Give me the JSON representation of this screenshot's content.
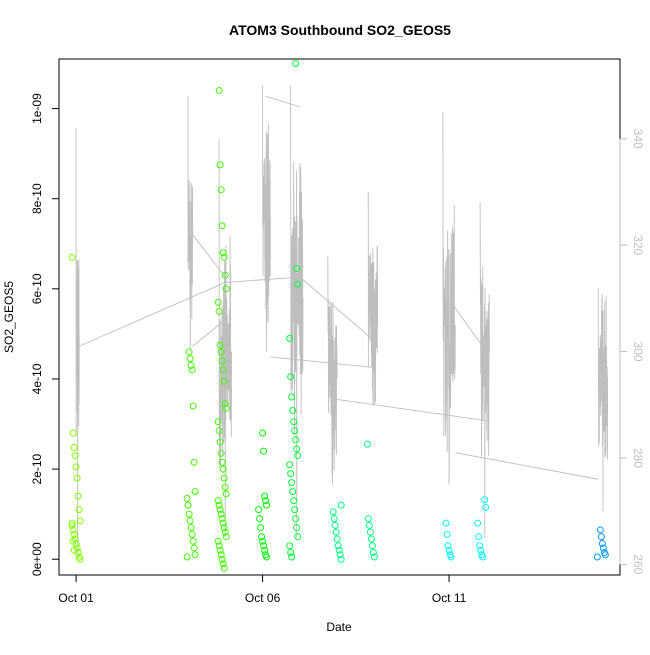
{
  "chart_data": {
    "type": "scatter",
    "title": "ATOM3 Southbound SO2_GEOS5",
    "xlabel": "Date",
    "ylabel": "SO2_GEOS5",
    "xlim": [
      "2017-09-30T13:00",
      "2017-10-15T14:00"
    ],
    "ylim": [
      -3.5e-11,
      1.11e-09
    ],
    "x_ticks": [
      {
        "label": "Oct 01",
        "value": "2017-10-01T00:00"
      },
      {
        "label": "Oct 06",
        "value": "2017-10-06T00:00"
      },
      {
        "label": "Oct 11",
        "value": "2017-10-11T00:00"
      }
    ],
    "y_ticks": [
      {
        "label": "0e+00",
        "value": 0
      },
      {
        "label": "2e-10",
        "value": 2e-10
      },
      {
        "label": "4e-10",
        "value": 4e-10
      },
      {
        "label": "6e-10",
        "value": 6e-10
      },
      {
        "label": "8e-10",
        "value": 8e-10
      },
      {
        "label": "1e-09",
        "value": 1e-09
      }
    ],
    "y2_ticks": [
      {
        "label": "260",
        "value": 260
      },
      {
        "label": "280",
        "value": 280
      },
      {
        "label": "300",
        "value": 300
      },
      {
        "label": "320",
        "value": 320
      },
      {
        "label": "340",
        "value": 340
      }
    ],
    "y2lim": [
      258,
      355
    ],
    "grid": false,
    "colors": {
      "axis": "#000000",
      "secondary_axis": "#bebebe",
      "overlay_line": "#bebebe"
    },
    "series": [
      {
        "color": "#7fff00",
        "points": [
          [
            "2017-10-01T00:00",
            6.7e-10
          ],
          [
            "2017-10-01T00:00",
            2.8e-10
          ],
          [
            "2017-10-01T00:00",
            2.48e-10
          ],
          [
            "2017-10-01T00:00",
            2.3e-10
          ],
          [
            "2017-10-01T00:00",
            2.05e-10
          ],
          [
            "2017-10-01T00:00",
            1.8e-10
          ],
          [
            "2017-10-01T00:00",
            1.4e-10
          ],
          [
            "2017-10-01T00:00",
            1.1e-10
          ],
          [
            "2017-10-01T00:00",
            8.5e-11
          ],
          [
            "2017-10-01T00:00",
            7.5e-11
          ],
          [
            "2017-10-01T00:00",
            6.5e-11
          ],
          [
            "2017-10-01T00:00",
            5.5e-11
          ],
          [
            "2017-10-01T00:00",
            4.5e-11
          ],
          [
            "2017-10-01T00:00",
            3.5e-11
          ],
          [
            "2017-10-01T00:00",
            2.5e-11
          ],
          [
            "2017-10-01T00:00",
            1.5e-11
          ],
          [
            "2017-10-01T00:00",
            5e-12
          ],
          [
            "2017-10-01T00:00",
            0
          ],
          [
            "2017-10-01T00:00",
            8e-11
          ],
          [
            "2017-10-01T00:00",
            4e-11
          ],
          [
            "2017-10-01T00:00",
            2e-11
          ]
        ]
      },
      {
        "color": "#3fff00",
        "points": [
          [
            "2017-10-04T02:00",
            4.6e-10
          ],
          [
            "2017-10-04T02:00",
            4.45e-10
          ],
          [
            "2017-10-04T02:00",
            4.3e-10
          ],
          [
            "2017-10-04T02:00",
            4.2e-10
          ],
          [
            "2017-10-04T02:00",
            3.4e-10
          ],
          [
            "2017-10-04T02:00",
            2.15e-10
          ],
          [
            "2017-10-04T02:00",
            1.5e-10
          ],
          [
            "2017-10-04T02:00",
            1.35e-10
          ],
          [
            "2017-10-04T02:00",
            1.2e-10
          ],
          [
            "2017-10-04T02:00",
            1e-10
          ],
          [
            "2017-10-04T02:00",
            8.5e-11
          ],
          [
            "2017-10-04T02:00",
            7e-11
          ],
          [
            "2017-10-04T02:00",
            5.5e-11
          ],
          [
            "2017-10-04T02:00",
            4e-11
          ],
          [
            "2017-10-04T02:00",
            2.5e-11
          ],
          [
            "2017-10-04T02:00",
            1e-11
          ],
          [
            "2017-10-04T02:00",
            5e-12
          ],
          [
            "2017-10-04T22:00",
            1.04e-09
          ],
          [
            "2017-10-04T22:00",
            8.75e-10
          ],
          [
            "2017-10-04T22:00",
            8.2e-10
          ],
          [
            "2017-10-04T22:00",
            7.4e-10
          ],
          [
            "2017-10-04T22:00",
            6.8e-10
          ],
          [
            "2017-10-04T22:00",
            6.7e-10
          ],
          [
            "2017-10-04T22:00",
            6.3e-10
          ],
          [
            "2017-10-04T22:00",
            6e-10
          ],
          [
            "2017-10-04T22:00",
            5.7e-10
          ],
          [
            "2017-10-04T22:00",
            5.5e-10
          ],
          [
            "2017-10-04T22:00",
            4.75e-10
          ],
          [
            "2017-10-04T22:00",
            4.6e-10
          ],
          [
            "2017-10-04T22:00",
            4.4e-10
          ],
          [
            "2017-10-04T22:00",
            4.2e-10
          ],
          [
            "2017-10-04T22:00",
            3.95e-10
          ],
          [
            "2017-10-04T22:00",
            3.45e-10
          ],
          [
            "2017-10-04T22:00",
            3.35e-10
          ],
          [
            "2017-10-04T22:00",
            3.05e-10
          ],
          [
            "2017-10-04T22:00",
            2.85e-10
          ],
          [
            "2017-10-04T22:00",
            2.6e-10
          ],
          [
            "2017-10-04T22:00",
            2.35e-10
          ],
          [
            "2017-10-04T22:00",
            2.15e-10
          ],
          [
            "2017-10-04T22:00",
            2e-10
          ],
          [
            "2017-10-04T22:00",
            1.8e-10
          ],
          [
            "2017-10-04T22:00",
            1.6e-10
          ],
          [
            "2017-10-04T22:00",
            1.45e-10
          ],
          [
            "2017-10-04T22:00",
            1.3e-10
          ],
          [
            "2017-10-04T22:00",
            1.2e-10
          ],
          [
            "2017-10-04T22:00",
            1.1e-10
          ],
          [
            "2017-10-04T22:00",
            1e-10
          ],
          [
            "2017-10-04T22:00",
            9e-11
          ],
          [
            "2017-10-04T22:00",
            8e-11
          ],
          [
            "2017-10-04T22:00",
            7e-11
          ],
          [
            "2017-10-04T22:00",
            6e-11
          ],
          [
            "2017-10-04T22:00",
            5e-11
          ],
          [
            "2017-10-04T22:00",
            4e-11
          ],
          [
            "2017-10-04T22:00",
            3e-11
          ],
          [
            "2017-10-04T22:00",
            2e-11
          ],
          [
            "2017-10-04T22:00",
            1e-11
          ],
          [
            "2017-10-04T22:00",
            0
          ],
          [
            "2017-10-04T22:00",
            -1e-11
          ],
          [
            "2017-10-04T22:00",
            -2e-11
          ]
        ]
      },
      {
        "color": "#00ff00",
        "points": [
          [
            "2017-10-06T00:00",
            2.8e-10
          ],
          [
            "2017-10-06T00:00",
            2.4e-10
          ],
          [
            "2017-10-06T00:00",
            1.4e-10
          ],
          [
            "2017-10-06T00:00",
            1.3e-10
          ],
          [
            "2017-10-06T00:00",
            1.2e-10
          ],
          [
            "2017-10-06T00:00",
            1.1e-10
          ],
          [
            "2017-10-06T00:00",
            9e-11
          ],
          [
            "2017-10-06T00:00",
            7e-11
          ],
          [
            "2017-10-06T00:00",
            5e-11
          ],
          [
            "2017-10-06T00:00",
            4e-11
          ],
          [
            "2017-10-06T00:00",
            3e-11
          ],
          [
            "2017-10-06T00:00",
            2e-11
          ],
          [
            "2017-10-06T00:00",
            1e-11
          ],
          [
            "2017-10-06T00:00",
            5e-12
          ]
        ]
      },
      {
        "color": "#00ff33",
        "points": [
          [
            "2017-10-06T20:00",
            1.1e-09
          ],
          [
            "2017-10-06T20:00",
            6.45e-10
          ],
          [
            "2017-10-06T20:00",
            6.1e-10
          ],
          [
            "2017-10-06T20:00",
            4.9e-10
          ],
          [
            "2017-10-06T20:00",
            4.05e-10
          ],
          [
            "2017-10-06T20:00",
            3.6e-10
          ],
          [
            "2017-10-06T20:00",
            3.3e-10
          ],
          [
            "2017-10-06T20:00",
            3.05e-10
          ],
          [
            "2017-10-06T20:00",
            2.85e-10
          ],
          [
            "2017-10-06T20:00",
            2.65e-10
          ],
          [
            "2017-10-06T20:00",
            2.45e-10
          ],
          [
            "2017-10-06T20:00",
            2.3e-10
          ],
          [
            "2017-10-06T20:00",
            2.1e-10
          ],
          [
            "2017-10-06T20:00",
            1.9e-10
          ],
          [
            "2017-10-06T20:00",
            1.7e-10
          ],
          [
            "2017-10-06T20:00",
            1.5e-10
          ],
          [
            "2017-10-06T20:00",
            1.3e-10
          ],
          [
            "2017-10-06T20:00",
            1.1e-10
          ],
          [
            "2017-10-06T20:00",
            9e-11
          ],
          [
            "2017-10-06T20:00",
            7e-11
          ],
          [
            "2017-10-06T20:00",
            5e-11
          ],
          [
            "2017-10-06T20:00",
            3e-11
          ],
          [
            "2017-10-06T20:00",
            1.5e-11
          ],
          [
            "2017-10-06T20:00",
            5e-12
          ]
        ]
      },
      {
        "color": "#00ff80",
        "points": [
          [
            "2017-10-08T00:00",
            1.2e-10
          ],
          [
            "2017-10-08T00:00",
            1.05e-10
          ],
          [
            "2017-10-08T00:00",
            9e-11
          ],
          [
            "2017-10-08T00:00",
            7.5e-11
          ],
          [
            "2017-10-08T00:00",
            6e-11
          ],
          [
            "2017-10-08T00:00",
            4.5e-11
          ],
          [
            "2017-10-08T00:00",
            3e-11
          ],
          [
            "2017-10-08T00:00",
            2e-11
          ],
          [
            "2017-10-08T00:00",
            1e-11
          ],
          [
            "2017-10-08T00:00",
            0
          ],
          [
            "2017-10-08T22:00",
            2.55e-10
          ],
          [
            "2017-10-08T22:00",
            9e-11
          ],
          [
            "2017-10-08T22:00",
            7.5e-11
          ],
          [
            "2017-10-08T22:00",
            6e-11
          ],
          [
            "2017-10-08T22:00",
            4.5e-11
          ],
          [
            "2017-10-08T22:00",
            3e-11
          ],
          [
            "2017-10-08T22:00",
            1.5e-11
          ],
          [
            "2017-10-08T22:00",
            5e-12
          ]
        ]
      },
      {
        "color": "#00ffff",
        "points": [
          [
            "2017-10-11T00:00",
            8e-11
          ],
          [
            "2017-10-11T00:00",
            5.5e-11
          ],
          [
            "2017-10-11T00:00",
            3e-11
          ],
          [
            "2017-10-11T00:00",
            2e-11
          ],
          [
            "2017-10-11T00:00",
            1e-11
          ],
          [
            "2017-10-11T00:00",
            5e-12
          ],
          [
            "2017-10-11T21:00",
            1.32e-10
          ],
          [
            "2017-10-11T21:00",
            1.15e-10
          ],
          [
            "2017-10-11T21:00",
            8e-11
          ],
          [
            "2017-10-11T21:00",
            5e-11
          ],
          [
            "2017-10-11T21:00",
            3e-11
          ],
          [
            "2017-10-11T21:00",
            2e-11
          ],
          [
            "2017-10-11T21:00",
            1e-11
          ],
          [
            "2017-10-11T21:00",
            5e-12
          ]
        ]
      },
      {
        "color": "#0099ff",
        "points": [
          [
            "2017-10-15T02:00",
            6.5e-11
          ],
          [
            "2017-10-15T02:00",
            5e-11
          ],
          [
            "2017-10-15T02:00",
            3.5e-11
          ],
          [
            "2017-10-15T02:00",
            2.5e-11
          ],
          [
            "2017-10-15T02:00",
            1.5e-11
          ],
          [
            "2017-10-15T02:00",
            1e-11
          ],
          [
            "2017-10-15T02:00",
            5e-12
          ]
        ]
      }
    ],
    "overlay": {
      "axis": "right",
      "segments": [
        {
          "x": [
            "2017-10-01T00:00",
            "2017-10-01T02:00"
          ],
          "low": 262,
          "high": 342,
          "base": 302,
          "noise": 18
        },
        {
          "x": [
            "2017-10-04T00:00",
            "2017-10-04T03:00"
          ],
          "low": 300,
          "high": 348,
          "base": 320,
          "noise": 14
        },
        {
          "x": [
            "2017-10-04T20:00",
            "2017-10-05T04:00"
          ],
          "low": 265,
          "high": 340,
          "base": 300,
          "noise": 22
        },
        {
          "x": [
            "2017-10-06T00:00",
            "2017-10-06T05:00"
          ],
          "low": 300,
          "high": 350,
          "base": 325,
          "noise": 20
        },
        {
          "x": [
            "2017-10-06T18:00",
            "2017-10-07T02:00"
          ],
          "low": 265,
          "high": 350,
          "base": 310,
          "noise": 26
        },
        {
          "x": [
            "2017-10-07T18:00",
            "2017-10-08T00:00"
          ],
          "low": 275,
          "high": 318,
          "base": 295,
          "noise": 18
        },
        {
          "x": [
            "2017-10-08T20:00",
            "2017-10-09T02:00"
          ],
          "low": 290,
          "high": 330,
          "base": 305,
          "noise": 16
        },
        {
          "x": [
            "2017-10-10T20:00",
            "2017-10-11T04:00"
          ],
          "low": 275,
          "high": 345,
          "base": 305,
          "noise": 24
        },
        {
          "x": [
            "2017-10-11T20:00",
            "2017-10-12T02:00"
          ],
          "low": 265,
          "high": 328,
          "base": 300,
          "noise": 22
        },
        {
          "x": [
            "2017-10-15T00:00",
            "2017-10-15T06:00"
          ],
          "low": 270,
          "high": 312,
          "base": 295,
          "noise": 16
        }
      ],
      "connectors": [
        [
          [
            "2017-10-01T02:00",
            301
          ],
          [
            "2017-10-05T00:00",
            313
          ]
        ],
        [
          [
            "2017-10-04T03:00",
            322
          ],
          [
            "2017-10-05T00:00",
            314
          ]
        ],
        [
          [
            "2017-10-04T03:00",
            301
          ],
          [
            "2017-10-05T00:00",
            306
          ]
        ],
        [
          [
            "2017-10-05T00:00",
            313
          ],
          [
            "2017-10-07T00:00",
            314
          ]
        ],
        [
          [
            "2017-10-06T02:00",
            348
          ],
          [
            "2017-10-07T00:00",
            346
          ]
        ],
        [
          [
            "2017-10-06T05:00",
            299
          ],
          [
            "2017-10-09T00:00",
            297
          ]
        ],
        [
          [
            "2017-10-07T00:00",
            314
          ],
          [
            "2017-10-09T00:00",
            302
          ]
        ],
        [
          [
            "2017-10-08T00:00",
            291
          ],
          [
            "2017-10-12T00:00",
            287
          ]
        ],
        [
          [
            "2017-10-11T02:00",
            309
          ],
          [
            "2017-10-12T00:00",
            300
          ]
        ],
        [
          [
            "2017-10-11T04:00",
            281
          ],
          [
            "2017-10-15T00:00",
            276
          ]
        ]
      ]
    }
  }
}
